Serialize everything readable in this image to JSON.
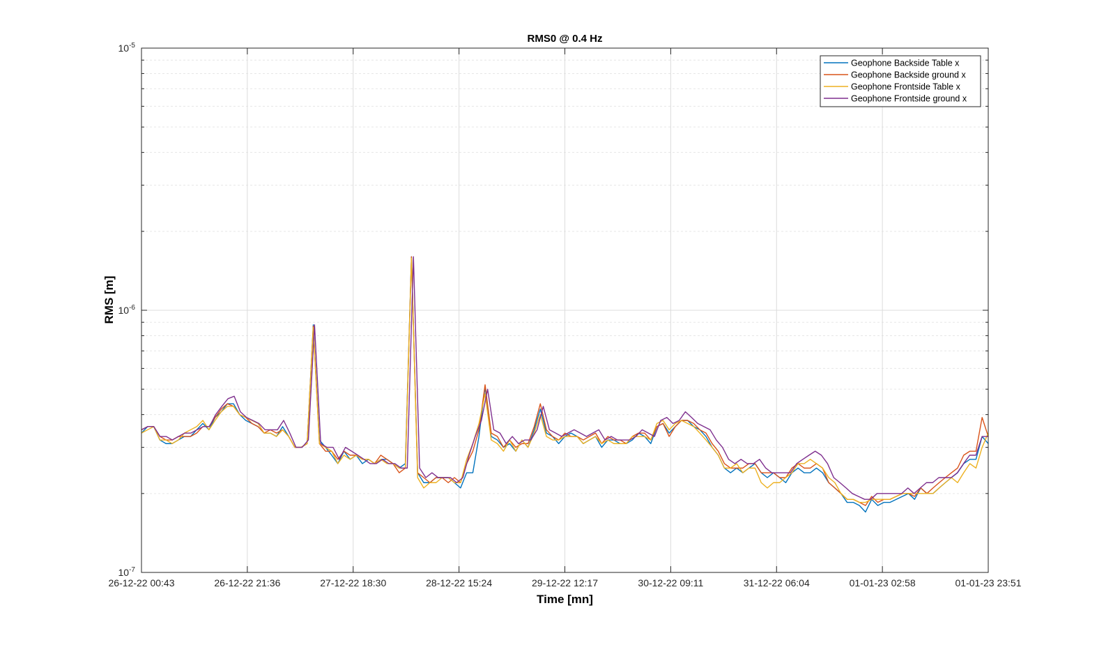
{
  "chart_data": {
    "type": "line",
    "title": "RMS0 @ 0.4 Hz",
    "xlabel": "Time [mn]",
    "ylabel": "RMS [m]",
    "yscale": "log",
    "ylim": [
      1e-07,
      1e-05
    ],
    "y_ticks": [
      {
        "value": 1e-05,
        "base": "10",
        "exponent": "-5"
      },
      {
        "value": 1e-06,
        "base": "10",
        "exponent": "-6"
      },
      {
        "value": 1e-07,
        "base": "10",
        "exponent": "-7"
      }
    ],
    "x_ticks": [
      "26-12-22 00:43",
      "26-12-22 21:36",
      "27-12-22 18:30",
      "28-12-22 15:24",
      "29-12-22 12:17",
      "30-12-22 09:11",
      "31-12-22 06:04",
      "01-01-23 02:58",
      "01-01-23 23:51"
    ],
    "grid": true,
    "legend_position": "top-right",
    "x_count": 8,
    "series": [
      {
        "name": "Geophone Backside Table x",
        "color": "#0072BD",
        "values": [
          3.4e-07,
          3.6e-07,
          3.6e-07,
          3.2e-07,
          3.1e-07,
          3.1e-07,
          3.2e-07,
          3.3e-07,
          3.3e-07,
          3.5e-07,
          3.7e-07,
          3.5e-07,
          3.9e-07,
          4.1e-07,
          4.4e-07,
          4.4e-07,
          4e-07,
          3.8e-07,
          3.7e-07,
          3.6e-07,
          3.4e-07,
          3.4e-07,
          3.3e-07,
          3.6e-07,
          3.3e-07,
          3e-07,
          3e-07,
          3.1e-07,
          8.8e-07,
          3.2e-07,
          3e-07,
          2.8e-07,
          2.6e-07,
          2.9e-07,
          2.7e-07,
          2.8e-07,
          2.6e-07,
          2.7e-07,
          2.6e-07,
          2.7e-07,
          2.7e-07,
          2.6e-07,
          2.5e-07,
          2.6e-07,
          1.6e-06,
          2.4e-07,
          2.2e-07,
          2.2e-07,
          2.3e-07,
          2.3e-07,
          2.3e-07,
          2.2e-07,
          2.1e-07,
          2.4e-07,
          2.4e-07,
          3.3e-07,
          5.1e-07,
          3.3e-07,
          3.2e-07,
          3e-07,
          3.1e-07,
          2.9e-07,
          3.2e-07,
          3e-07,
          3.5e-07,
          4.2e-07,
          3.4e-07,
          3.3e-07,
          3.1e-07,
          3.3e-07,
          3.4e-07,
          3.3e-07,
          3.1e-07,
          3.2e-07,
          3.3e-07,
          3e-07,
          3.2e-07,
          3.2e-07,
          3.1e-07,
          3.1e-07,
          3.2e-07,
          3.4e-07,
          3.3e-07,
          3.1e-07,
          3.6e-07,
          3.7e-07,
          3.4e-07,
          3.6e-07,
          3.8e-07,
          3.8e-07,
          3.6e-07,
          3.5e-07,
          3.3e-07,
          3e-07,
          2.8e-07,
          2.5e-07,
          2.4e-07,
          2.5e-07,
          2.4e-07,
          2.5e-07,
          2.6e-07,
          2.4e-07,
          2.3e-07,
          2.4e-07,
          2.3e-07,
          2.2e-07,
          2.4e-07,
          2.5e-07,
          2.4e-07,
          2.4e-07,
          2.5e-07,
          2.4e-07,
          2.2e-07,
          2.1e-07,
          2e-07,
          1.85e-07,
          1.85e-07,
          1.8e-07,
          1.7e-07,
          1.9e-07,
          1.8e-07,
          1.85e-07,
          1.85e-07,
          1.9e-07,
          1.95e-07,
          2e-07,
          1.9e-07,
          2.1e-07,
          2e-07,
          2e-07,
          2.1e-07,
          2.2e-07,
          2.3e-07,
          2.4e-07,
          2.6e-07,
          2.7e-07,
          2.7e-07,
          3.3e-07,
          3.1e-07
        ]
      },
      {
        "name": "Geophone Backside ground x",
        "color": "#D95319",
        "values": [
          3.5e-07,
          3.6e-07,
          3.6e-07,
          3.3e-07,
          3.2e-07,
          3.2e-07,
          3.3e-07,
          3.3e-07,
          3.3e-07,
          3.4e-07,
          3.6e-07,
          3.6e-07,
          3.9e-07,
          4.2e-07,
          4.4e-07,
          4.3e-07,
          4e-07,
          3.9e-07,
          3.7e-07,
          3.6e-07,
          3.4e-07,
          3.5e-07,
          3.4e-07,
          3.5e-07,
          3.3e-07,
          3e-07,
          3e-07,
          3.1e-07,
          8.7e-07,
          3.1e-07,
          2.9e-07,
          2.9e-07,
          2.7e-07,
          2.9e-07,
          2.8e-07,
          2.8e-07,
          2.7e-07,
          2.7e-07,
          2.6e-07,
          2.8e-07,
          2.7e-07,
          2.6e-07,
          2.4e-07,
          2.5e-07,
          1.6e-06,
          2.4e-07,
          2.3e-07,
          2.2e-07,
          2.3e-07,
          2.3e-07,
          2.2e-07,
          2.3e-07,
          2.2e-07,
          2.6e-07,
          2.9e-07,
          3.5e-07,
          5.2e-07,
          3.4e-07,
          3.3e-07,
          3e-07,
          3.2e-07,
          3e-07,
          3.1e-07,
          3.1e-07,
          3.6e-07,
          4.4e-07,
          3.5e-07,
          3.3e-07,
          3.2e-07,
          3.4e-07,
          3.3e-07,
          3.3e-07,
          3.2e-07,
          3.3e-07,
          3.4e-07,
          3.1e-07,
          3.3e-07,
          3.2e-07,
          3.2e-07,
          3.1e-07,
          3.3e-07,
          3.4e-07,
          3.4e-07,
          3.2e-07,
          3.6e-07,
          3.7e-07,
          3.3e-07,
          3.6e-07,
          3.8e-07,
          3.8e-07,
          3.7e-07,
          3.5e-07,
          3.4e-07,
          3.1e-07,
          2.9e-07,
          2.6e-07,
          2.5e-07,
          2.5e-07,
          2.5e-07,
          2.6e-07,
          2.6e-07,
          2.4e-07,
          2.4e-07,
          2.4e-07,
          2.3e-07,
          2.3e-07,
          2.5e-07,
          2.6e-07,
          2.5e-07,
          2.5e-07,
          2.6e-07,
          2.5e-07,
          2.2e-07,
          2.1e-07,
          2e-07,
          1.9e-07,
          1.9e-07,
          1.85e-07,
          1.8e-07,
          1.95e-07,
          1.85e-07,
          1.9e-07,
          1.9e-07,
          1.95e-07,
          2e-07,
          2e-07,
          1.95e-07,
          2.1e-07,
          2e-07,
          2.1e-07,
          2.2e-07,
          2.3e-07,
          2.4e-07,
          2.5e-07,
          2.8e-07,
          2.9e-07,
          2.9e-07,
          3.9e-07,
          3.3e-07
        ]
      },
      {
        "name": "Geophone Frontside Table x",
        "color": "#EDB120",
        "values": [
          3.4e-07,
          3.5e-07,
          3.6e-07,
          3.2e-07,
          3.2e-07,
          3.1e-07,
          3.2e-07,
          3.4e-07,
          3.5e-07,
          3.6e-07,
          3.8e-07,
          3.5e-07,
          3.8e-07,
          4.1e-07,
          4.3e-07,
          4.3e-07,
          4e-07,
          3.9e-07,
          3.8e-07,
          3.7e-07,
          3.4e-07,
          3.4e-07,
          3.3e-07,
          3.5e-07,
          3.3e-07,
          3e-07,
          3e-07,
          3.1e-07,
          8.6e-07,
          3.1e-07,
          3e-07,
          2.9e-07,
          2.6e-07,
          2.8e-07,
          2.7e-07,
          2.8e-07,
          2.7e-07,
          2.7e-07,
          2.6e-07,
          2.7e-07,
          2.6e-07,
          2.6e-07,
          2.5e-07,
          2.5e-07,
          1.58e-06,
          2.3e-07,
          2.1e-07,
          2.2e-07,
          2.2e-07,
          2.3e-07,
          2.3e-07,
          2.2e-07,
          2.2e-07,
          2.7e-07,
          3.1e-07,
          3.7e-07,
          4.8e-07,
          3.2e-07,
          3.1e-07,
          2.9e-07,
          3.2e-07,
          2.9e-07,
          3.2e-07,
          3e-07,
          3.4e-07,
          4e-07,
          3.3e-07,
          3.2e-07,
          3.2e-07,
          3.3e-07,
          3.3e-07,
          3.3e-07,
          3.1e-07,
          3.2e-07,
          3.3e-07,
          3.1e-07,
          3.2e-07,
          3.1e-07,
          3.1e-07,
          3.1e-07,
          3.3e-07,
          3.3e-07,
          3.3e-07,
          3.2e-07,
          3.7e-07,
          3.8e-07,
          3.5e-07,
          3.7e-07,
          3.8e-07,
          3.7e-07,
          3.6e-07,
          3.4e-07,
          3.2e-07,
          3e-07,
          2.8e-07,
          2.5e-07,
          2.5e-07,
          2.6e-07,
          2.4e-07,
          2.5e-07,
          2.5e-07,
          2.2e-07,
          2.1e-07,
          2.2e-07,
          2.2e-07,
          2.3e-07,
          2.4e-07,
          2.6e-07,
          2.6e-07,
          2.7e-07,
          2.6e-07,
          2.5e-07,
          2.3e-07,
          2.2e-07,
          2e-07,
          1.9e-07,
          1.9e-07,
          1.85e-07,
          1.85e-07,
          1.9e-07,
          1.9e-07,
          1.9e-07,
          1.9e-07,
          1.95e-07,
          2e-07,
          2e-07,
          2e-07,
          2e-07,
          2e-07,
          2e-07,
          2.1e-07,
          2.2e-07,
          2.3e-07,
          2.2e-07,
          2.4e-07,
          2.6e-07,
          2.5e-07,
          3e-07,
          3.4e-07
        ]
      },
      {
        "name": "Geophone Frontside ground x",
        "color": "#7E2F8E",
        "values": [
          3.5e-07,
          3.6e-07,
          3.6e-07,
          3.3e-07,
          3.3e-07,
          3.2e-07,
          3.3e-07,
          3.4e-07,
          3.4e-07,
          3.5e-07,
          3.6e-07,
          3.6e-07,
          4e-07,
          4.3e-07,
          4.6e-07,
          4.7e-07,
          4.1e-07,
          3.9e-07,
          3.8e-07,
          3.7e-07,
          3.5e-07,
          3.5e-07,
          3.5e-07,
          3.8e-07,
          3.4e-07,
          3e-07,
          3e-07,
          3.2e-07,
          8.8e-07,
          3.1e-07,
          3e-07,
          3e-07,
          2.7e-07,
          3e-07,
          2.9e-07,
          2.8e-07,
          2.7e-07,
          2.6e-07,
          2.6e-07,
          2.7e-07,
          2.6e-07,
          2.6e-07,
          2.5e-07,
          2.5e-07,
          1.6e-06,
          2.5e-07,
          2.3e-07,
          2.4e-07,
          2.3e-07,
          2.3e-07,
          2.3e-07,
          2.2e-07,
          2.3e-07,
          2.8e-07,
          3.3e-07,
          3.8e-07,
          5e-07,
          3.5e-07,
          3.4e-07,
          3.1e-07,
          3.3e-07,
          3.1e-07,
          3.2e-07,
          3.2e-07,
          3.5e-07,
          4.3e-07,
          3.5e-07,
          3.4e-07,
          3.3e-07,
          3.4e-07,
          3.5e-07,
          3.4e-07,
          3.3e-07,
          3.4e-07,
          3.5e-07,
          3.2e-07,
          3.3e-07,
          3.2e-07,
          3.2e-07,
          3.2e-07,
          3.3e-07,
          3.5e-07,
          3.4e-07,
          3.3e-07,
          3.8e-07,
          3.9e-07,
          3.7e-07,
          3.8e-07,
          4.1e-07,
          3.9e-07,
          3.7e-07,
          3.6e-07,
          3.5e-07,
          3.2e-07,
          3e-07,
          2.7e-07,
          2.6e-07,
          2.7e-07,
          2.6e-07,
          2.6e-07,
          2.7e-07,
          2.5e-07,
          2.4e-07,
          2.4e-07,
          2.4e-07,
          2.4e-07,
          2.6e-07,
          2.7e-07,
          2.8e-07,
          2.9e-07,
          2.8e-07,
          2.6e-07,
          2.3e-07,
          2.2e-07,
          2.1e-07,
          2e-07,
          1.95e-07,
          1.9e-07,
          1.9e-07,
          2e-07,
          2e-07,
          2e-07,
          2e-07,
          2e-07,
          2.1e-07,
          2e-07,
          2.1e-07,
          2.2e-07,
          2.2e-07,
          2.3e-07,
          2.3e-07,
          2.3e-07,
          2.4e-07,
          2.6e-07,
          2.8e-07,
          2.8e-07,
          3.3e-07,
          3.3e-07
        ]
      }
    ]
  }
}
